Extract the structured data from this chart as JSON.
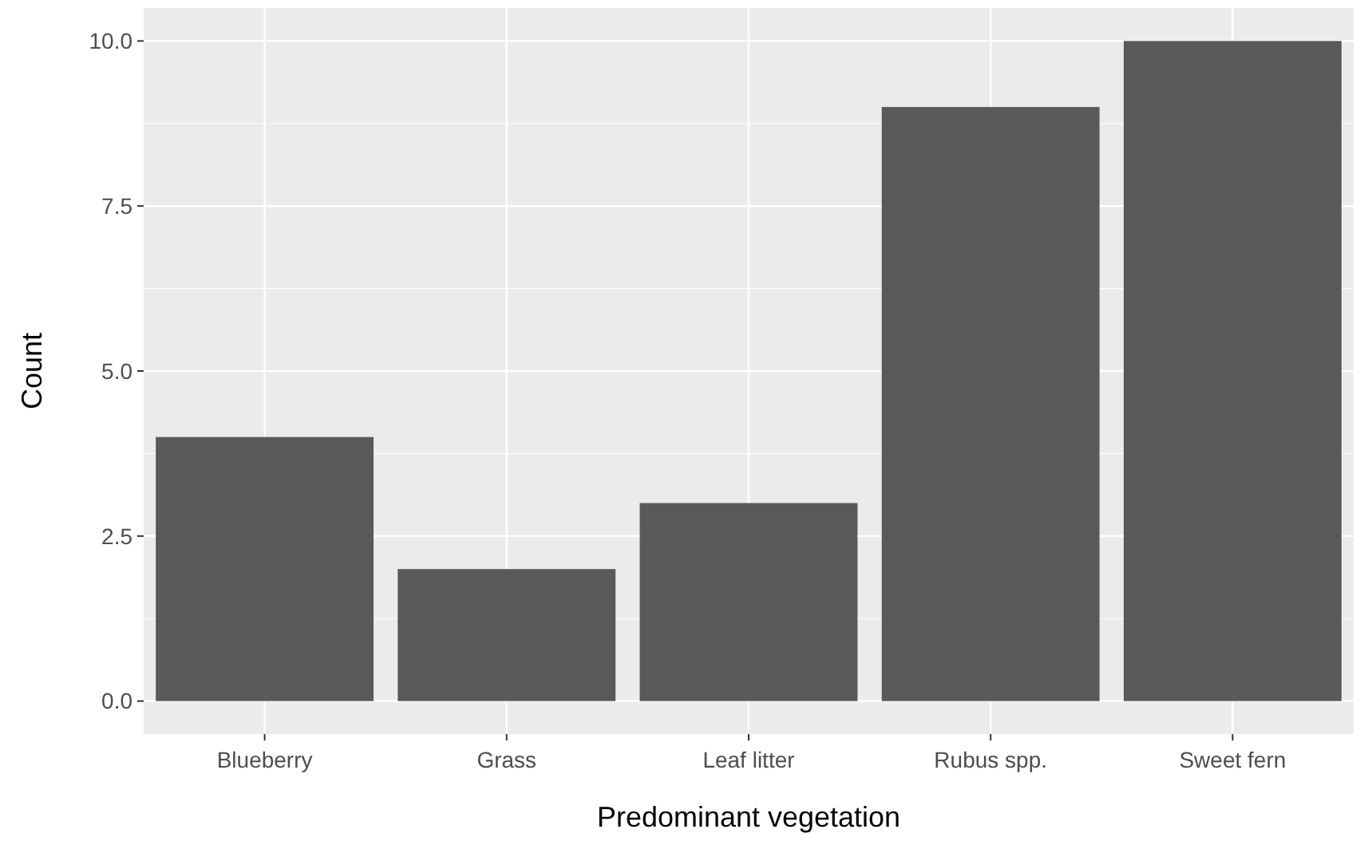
{
  "chart_data": {
    "type": "bar",
    "xlabel": "Predominant vegetation",
    "ylabel": "Count",
    "categories": [
      "Blueberry",
      "Grass",
      "Leaf litter",
      "Rubus spp.",
      "Sweet fern"
    ],
    "values": [
      4,
      2,
      3,
      9,
      10
    ],
    "color": "#595959",
    "ylim": [
      -0.5,
      10.5
    ],
    "yticks": [
      {
        "value": 0,
        "label": "0.0"
      },
      {
        "value": 2.5,
        "label": "2.5"
      },
      {
        "value": 5,
        "label": "5.0"
      },
      {
        "value": 7.5,
        "label": "7.5"
      },
      {
        "value": 10,
        "label": "10.0"
      }
    ],
    "grid": true
  }
}
